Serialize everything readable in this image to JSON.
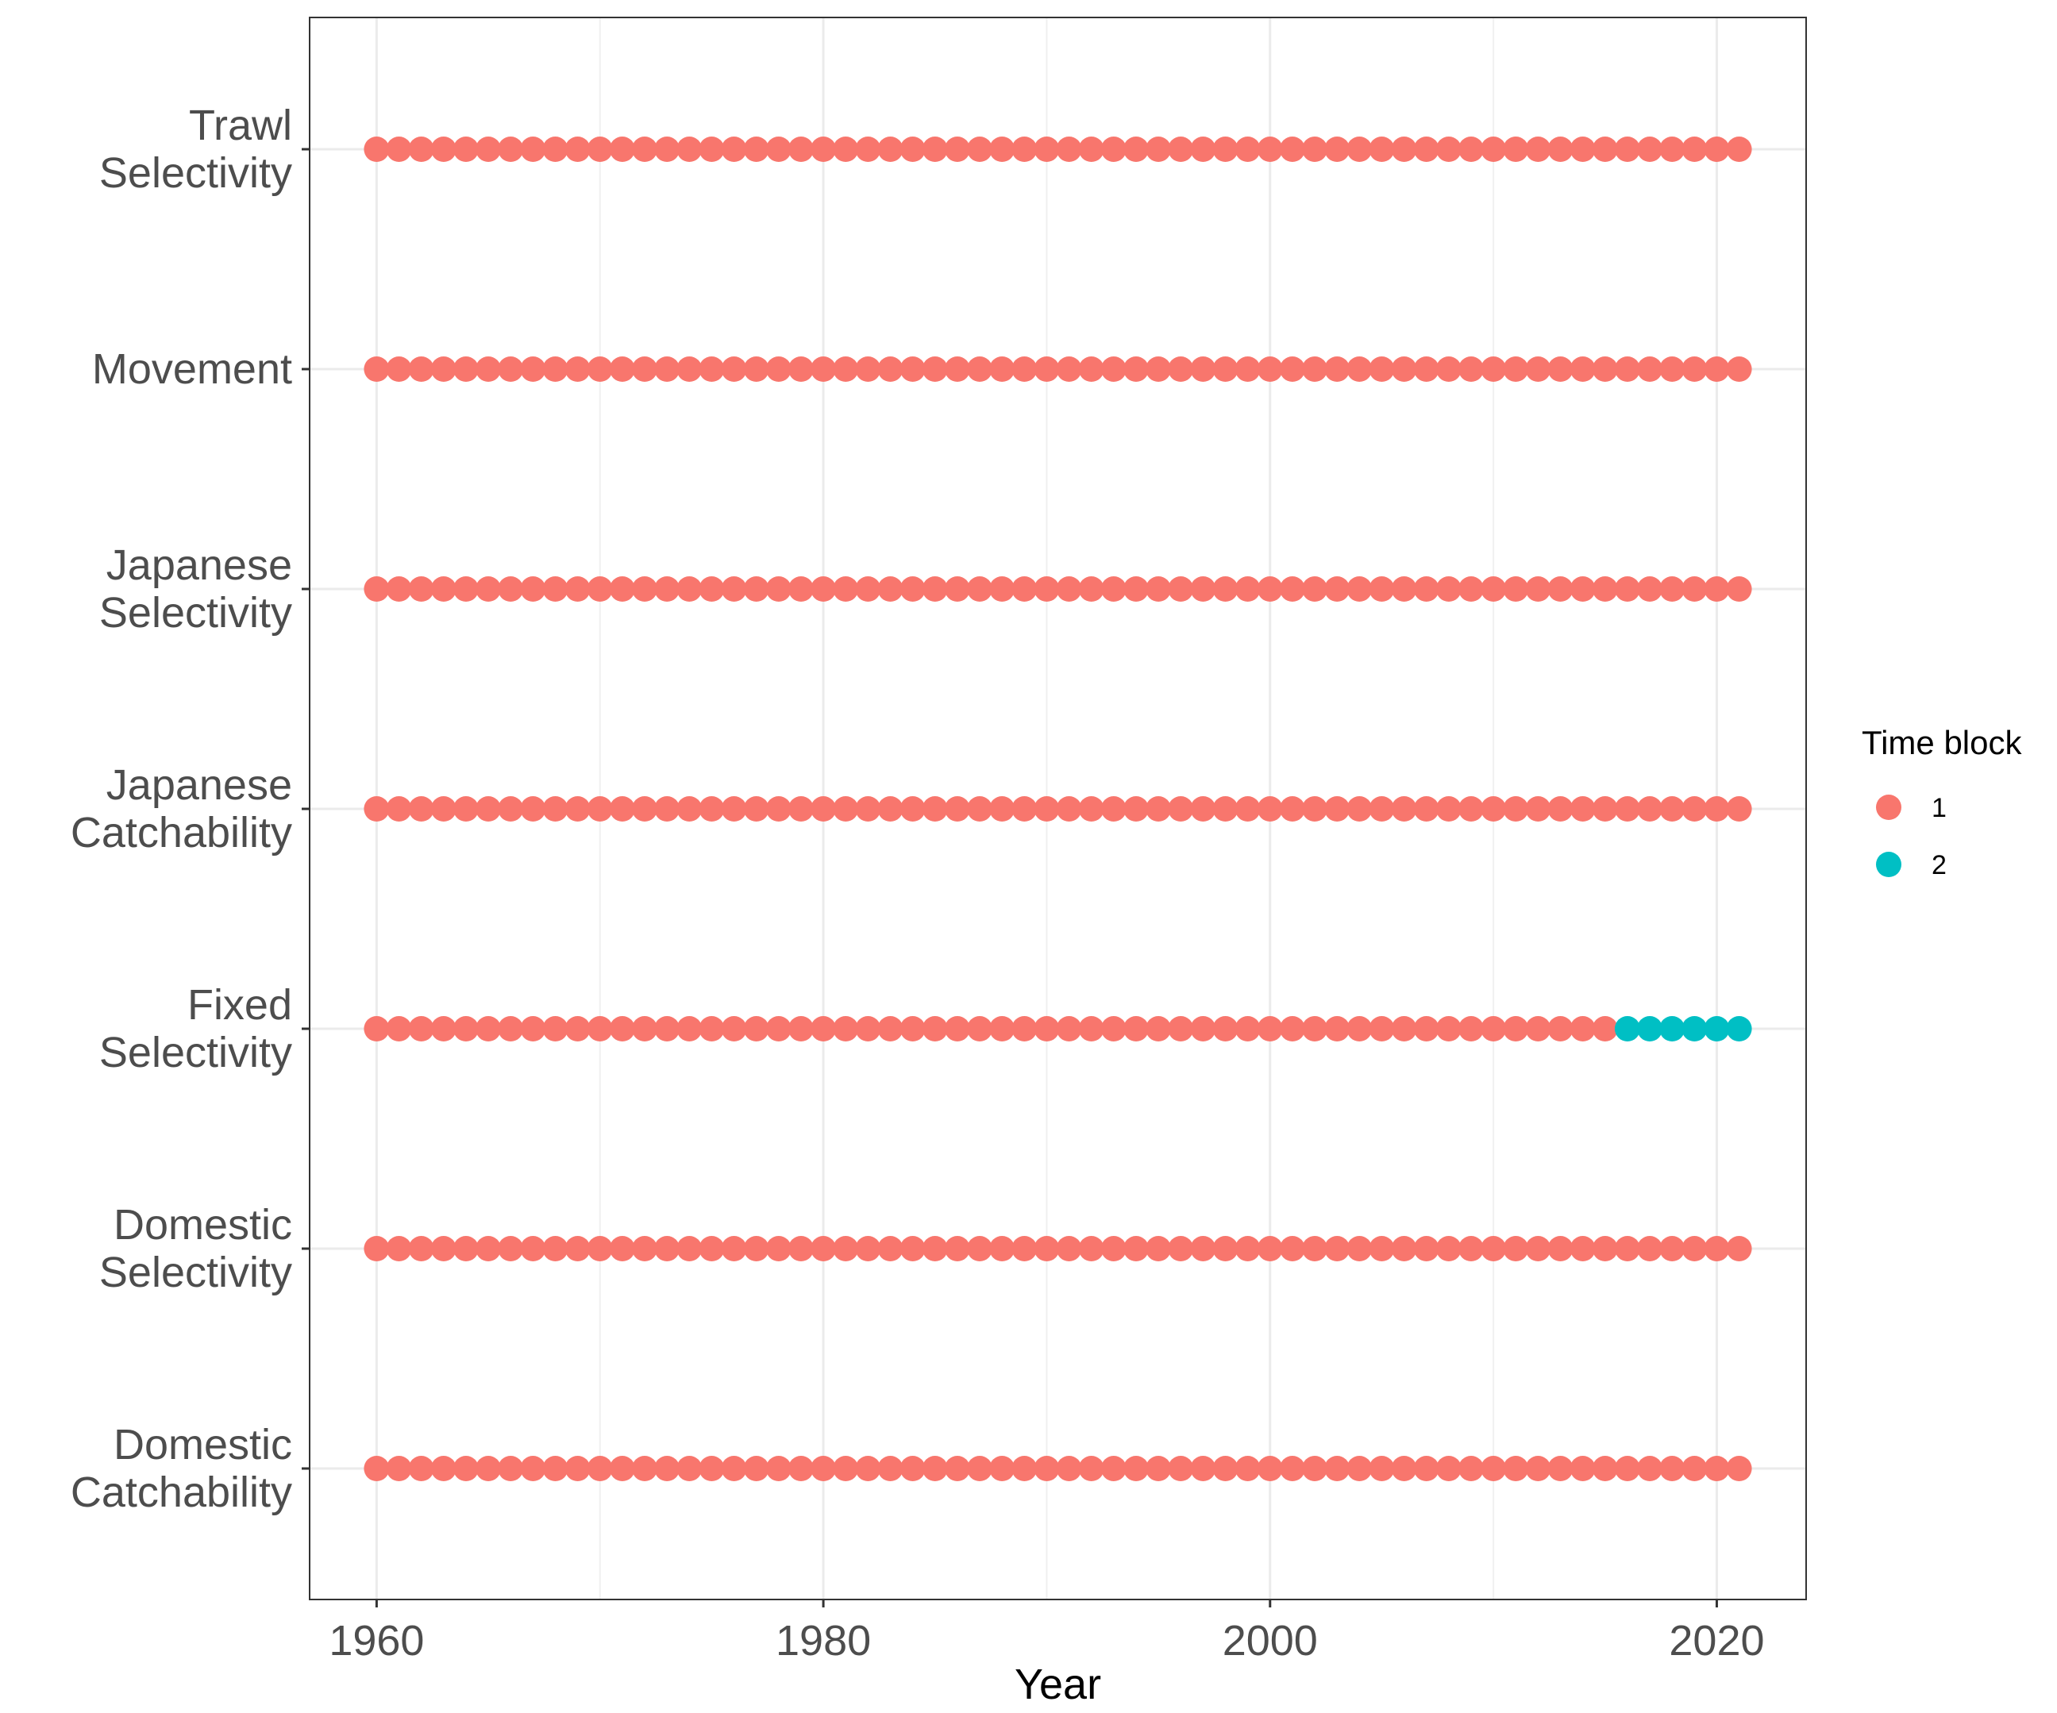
{
  "chart_data": {
    "type": "scatter",
    "title": "",
    "xlabel": "Year",
    "ylabel": "",
    "xlim": [
      1957,
      2024
    ],
    "x_ticks": [
      "1960",
      "1980",
      "2000",
      "2020"
    ],
    "x_tick_values": [
      1960,
      1980,
      2000,
      2020
    ],
    "grid": true,
    "legend_position": "right",
    "legend_title": "Time block",
    "legend_entries": [
      {
        "label": "1",
        "color": "#F8766D"
      },
      {
        "label": "2",
        "color": "#00BFC4"
      }
    ],
    "categories": [
      [
        "Trawl",
        "Selectivity"
      ],
      [
        "Movement"
      ],
      [
        "Japanese",
        "Selectivity"
      ],
      [
        "Japanese",
        "Catchability"
      ],
      [
        "Fixed",
        "Selectivity"
      ],
      [
        "Domestic",
        "Selectivity"
      ],
      [
        "Domestic",
        "Catchability"
      ]
    ],
    "series": [
      {
        "category": "Trawl Selectivity",
        "segments": [
          {
            "block": "1",
            "from": 1960,
            "to": 2021
          }
        ]
      },
      {
        "category": "Movement",
        "segments": [
          {
            "block": "1",
            "from": 1960,
            "to": 2021
          }
        ]
      },
      {
        "category": "Japanese Selectivity",
        "segments": [
          {
            "block": "1",
            "from": 1960,
            "to": 2021
          }
        ]
      },
      {
        "category": "Japanese Catchability",
        "segments": [
          {
            "block": "1",
            "from": 1960,
            "to": 2021
          }
        ]
      },
      {
        "category": "Fixed Selectivity",
        "segments": [
          {
            "block": "1",
            "from": 1960,
            "to": 2015
          },
          {
            "block": "2",
            "from": 2016,
            "to": 2021
          }
        ]
      },
      {
        "category": "Domestic Selectivity",
        "segments": [
          {
            "block": "1",
            "from": 1960,
            "to": 2021
          }
        ]
      },
      {
        "category": "Domestic Catchability",
        "segments": [
          {
            "block": "1",
            "from": 1960,
            "to": 2021
          }
        ]
      }
    ]
  }
}
